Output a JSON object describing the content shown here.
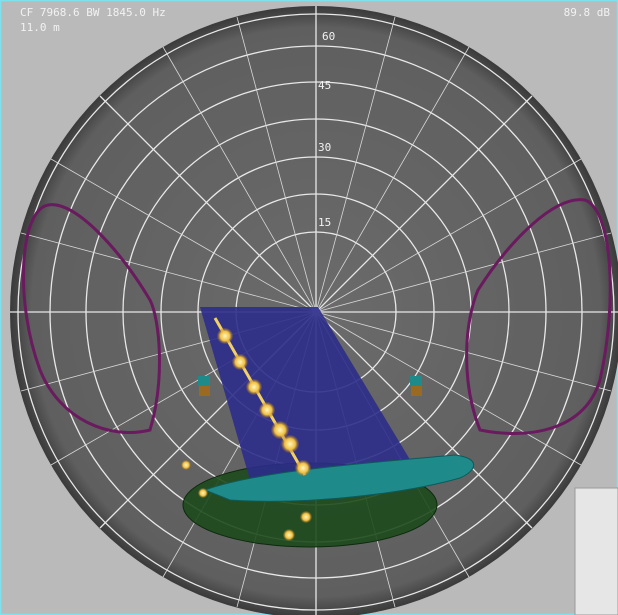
{
  "header": {
    "frequency": "CF 7968.6 BW 1845.0 Hz",
    "distance": "11.0 m",
    "level": "89.8 dB"
  },
  "polar": {
    "ring_labels": [
      "60",
      "45",
      "30",
      "15"
    ]
  }
}
